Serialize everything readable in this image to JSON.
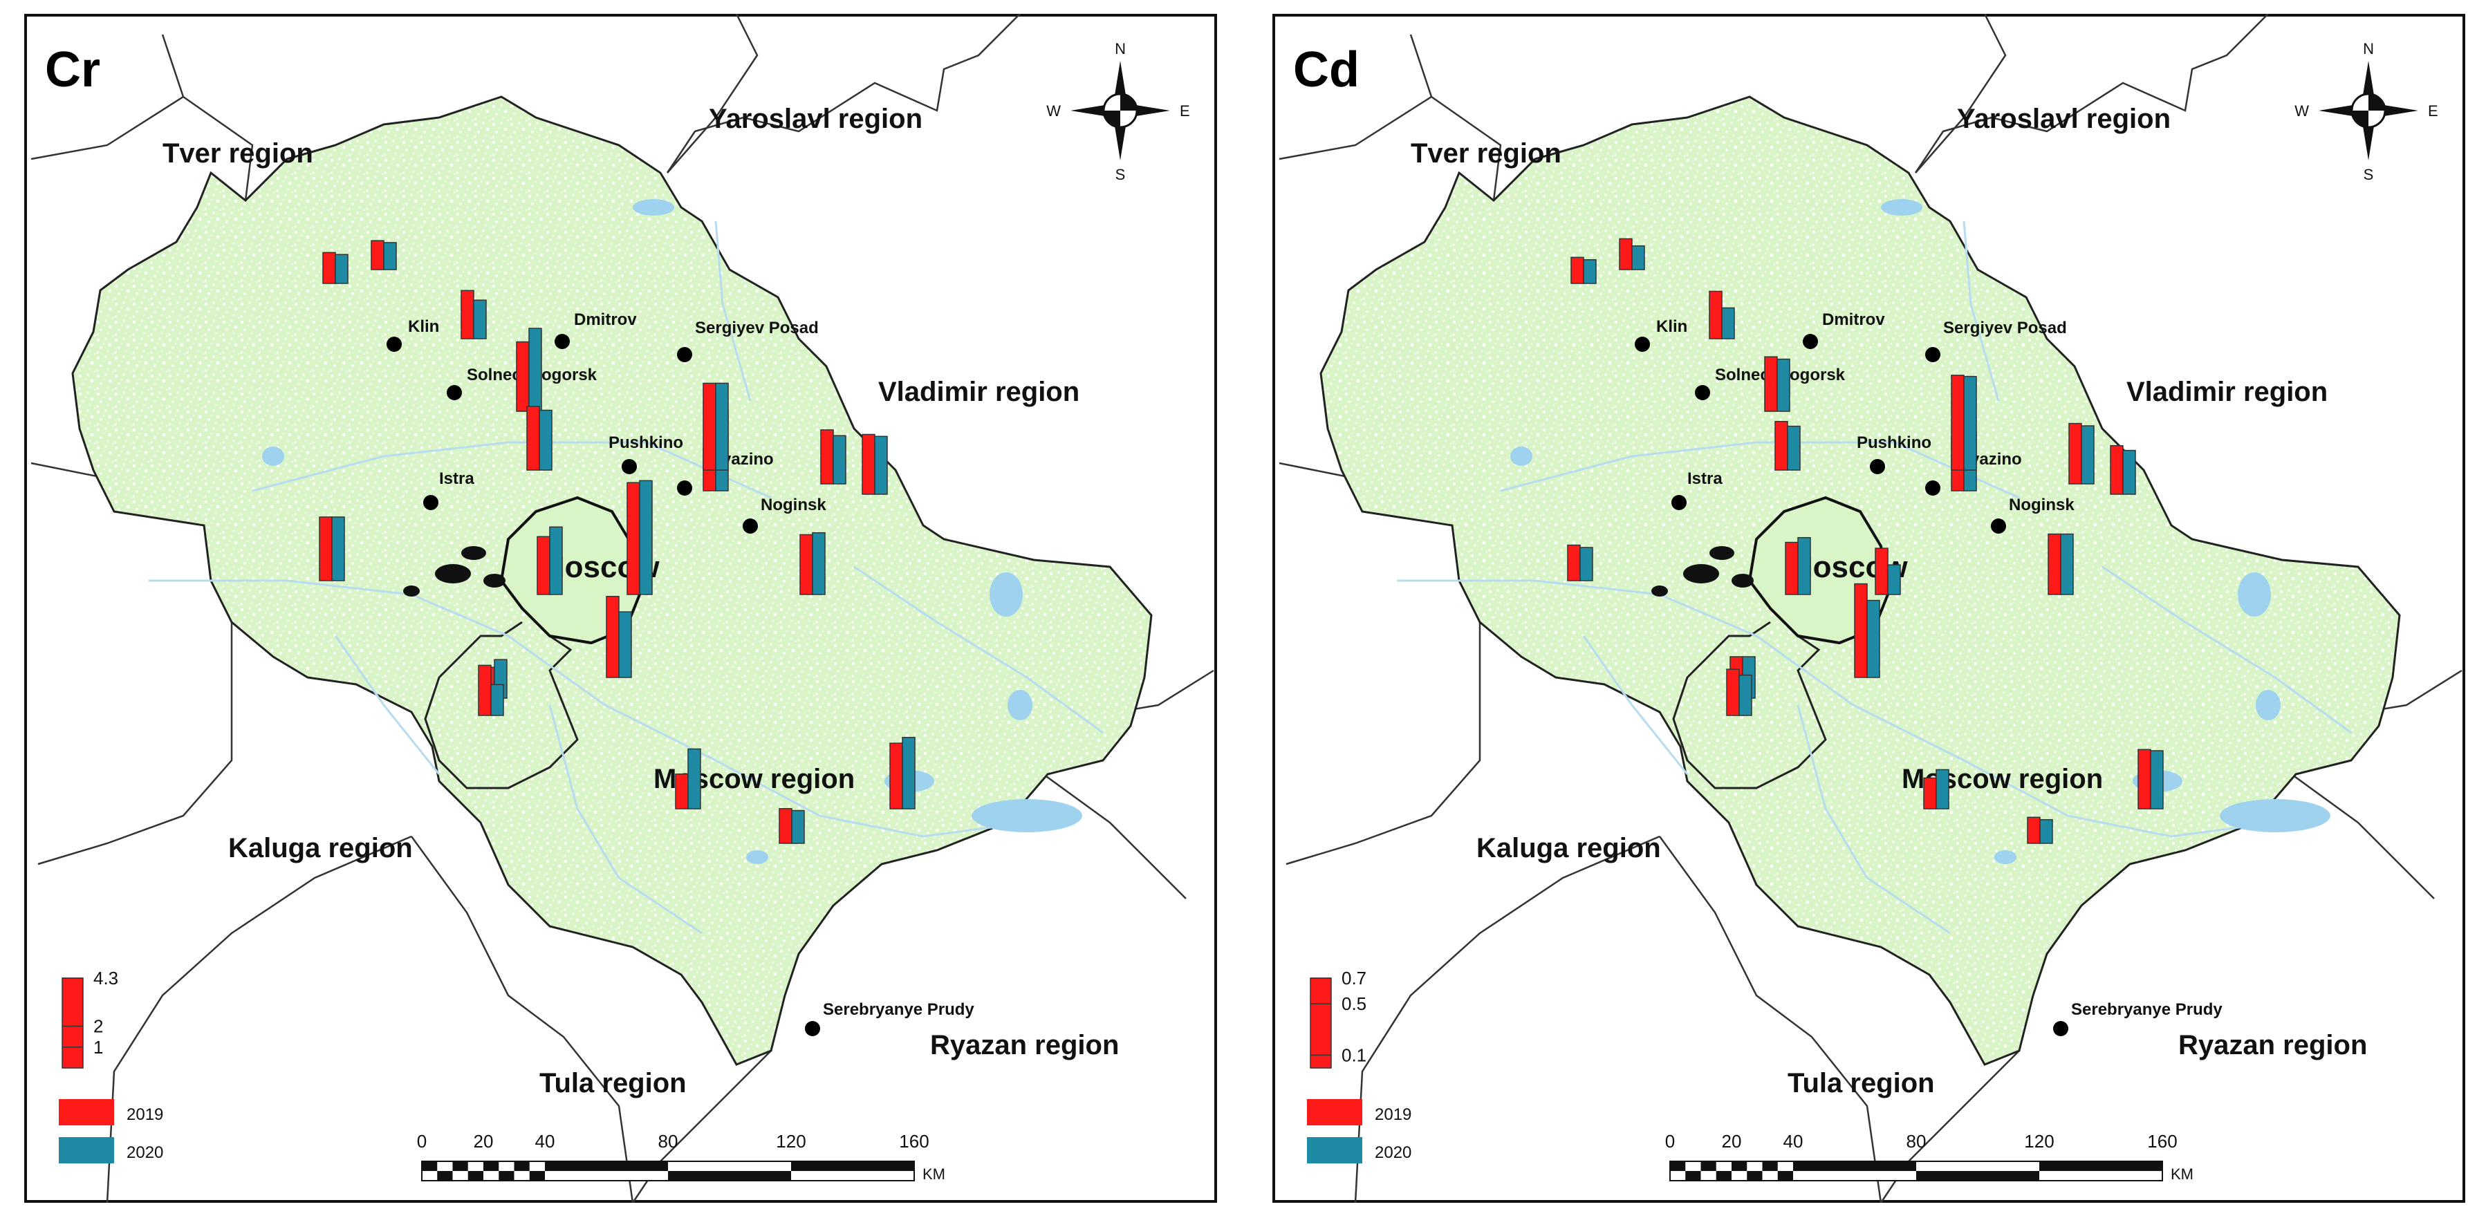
{
  "legend": {
    "year_a": "2019",
    "year_b": "2020"
  },
  "compass": {
    "n": "N",
    "s": "S",
    "e": "E",
    "w": "W"
  },
  "scalebar": {
    "ticks": [
      "0",
      "20",
      "40",
      "80",
      "120",
      "160"
    ],
    "unit": "KM"
  },
  "colors": {
    "land": "#d9f5c8",
    "speckle": "#ffffff",
    "water": "#9fd2ee",
    "bar_2019": "#ff1a1a",
    "bar_2020": "#1e8aa3",
    "border": "#333333"
  },
  "regions": [
    {
      "key": "tver",
      "label": "Tver region"
    },
    {
      "key": "yaroslavl",
      "label": "Yaroslavl region"
    },
    {
      "key": "vladimir",
      "label": "Vladimir region"
    },
    {
      "key": "kaluga",
      "label": "Kaluga region"
    },
    {
      "key": "tula",
      "label": "Tula region"
    },
    {
      "key": "ryazan",
      "label": "Ryazan region"
    },
    {
      "key": "moscow_region",
      "label": "Moscow region"
    },
    {
      "key": "moscow",
      "label": "Moscow"
    }
  ],
  "cities": [
    {
      "key": "klin",
      "label": "Klin"
    },
    {
      "key": "dmitrov",
      "label": "Dmitrov"
    },
    {
      "key": "sergiev",
      "label": "Sergiyev Posad"
    },
    {
      "key": "solnech",
      "label": "Solnechnogorsk"
    },
    {
      "key": "pushkino",
      "label": "Pushkino"
    },
    {
      "key": "fryazino",
      "label": "Fryazino"
    },
    {
      "key": "istra",
      "label": "Istra"
    },
    {
      "key": "noginsk",
      "label": "Noginsk"
    },
    {
      "key": "serebr",
      "label": "Serebryanye Prudy"
    }
  ],
  "panels": [
    {
      "key": "cr",
      "element": "Cr",
      "legend_ticks": [
        {
          "value": 4.3,
          "label": "4.3"
        },
        {
          "value": 2,
          "label": "2"
        },
        {
          "value": 1,
          "label": "1"
        }
      ],
      "legend_max": 4.3,
      "sites": [
        {
          "a": 1.6,
          "b": 1.5
        },
        {
          "a": 1.5,
          "b": 1.4
        },
        {
          "a": 2.5,
          "b": 2.0
        },
        {
          "a": 3.6,
          "b": 4.3
        },
        {
          "a": 3.3,
          "b": 3.1
        },
        {
          "a": 3.3,
          "b": 3.3
        },
        {
          "a": 3.0,
          "b": 3.5
        },
        {
          "a": 5.8,
          "b": 5.9
        },
        {
          "a": 2.2,
          "b": 4.2
        },
        {
          "a": 1.6,
          "b": 2.0
        },
        {
          "a": 2.6,
          "b": 1.6
        },
        {
          "a": 4.2,
          "b": 3.4
        },
        {
          "a": 4.5,
          "b": 4.5
        },
        {
          "a": 3.1,
          "b": 3.2
        },
        {
          "a": 3.4,
          "b": 3.7
        },
        {
          "a": 2.8,
          "b": 2.5
        },
        {
          "a": 1.8,
          "b": 3.1
        },
        {
          "a": 1.8,
          "b": 1.7
        },
        {
          "a": 3.1,
          "b": 3.0
        }
      ]
    },
    {
      "key": "cd",
      "element": "Cd",
      "legend_ticks": [
        {
          "value": 0.7,
          "label": "0.7"
        },
        {
          "value": 0.5,
          "label": "0.5"
        },
        {
          "value": 0.1,
          "label": "0.1"
        }
      ],
      "legend_max": 0.7,
      "sites": [
        {
          "a": 0.22,
          "b": 0.2
        },
        {
          "a": 0.26,
          "b": 0.2
        },
        {
          "a": 0.4,
          "b": 0.26
        },
        {
          "a": 0.46,
          "b": 0.44
        },
        {
          "a": 0.41,
          "b": 0.37
        },
        {
          "a": 0.3,
          "b": 0.28
        },
        {
          "a": 0.44,
          "b": 0.48
        },
        {
          "a": 0.39,
          "b": 0.25
        },
        {
          "a": 0.46,
          "b": 0.5
        },
        {
          "a": 0.35,
          "b": 0.35
        },
        {
          "a": 0.39,
          "b": 0.34
        },
        {
          "a": 0.79,
          "b": 0.65
        },
        {
          "a": 0.8,
          "b": 0.79
        },
        {
          "a": 0.51,
          "b": 0.51
        },
        {
          "a": 0.5,
          "b": 0.49
        },
        {
          "a": 0.51,
          "b": 0.49
        },
        {
          "a": 0.26,
          "b": 0.33
        },
        {
          "a": 0.22,
          "b": 0.2
        },
        {
          "a": 0.41,
          "b": 0.37
        }
      ]
    }
  ]
}
